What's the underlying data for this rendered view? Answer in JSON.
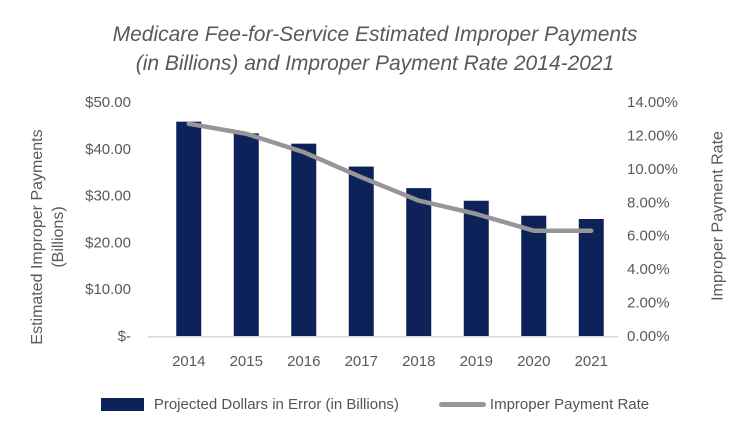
{
  "title": {
    "line1": "Medicare Fee-for-Service Estimated Improper Payments",
    "line2": "(in Billions) and Improper Payment Rate 2014-2021"
  },
  "axes": {
    "left": {
      "title_line1": "Estimated Improper Payments",
      "title_line2": "(Billions)"
    },
    "right": {
      "title": "Improper Payment Rate"
    }
  },
  "legend": {
    "bar_label": "Projected Dollars in Error (in Billions)",
    "line_label": "Improper Payment Rate"
  },
  "colors": {
    "bar": "#0c2258",
    "line": "#969696",
    "axis_line": "#d9d9d9",
    "text": "#595959"
  },
  "chart_data": {
    "type": "bar",
    "title": "Medicare Fee-for-Service Estimated Improper Payments (in Billions) and Improper Payment Rate 2014-2021",
    "categories": [
      "2014",
      "2015",
      "2016",
      "2017",
      "2018",
      "2019",
      "2020",
      "2021"
    ],
    "series": [
      {
        "name": "Projected Dollars in Error (in Billions)",
        "type": "bar",
        "axis": "left",
        "values": [
          45.8,
          43.3,
          41.1,
          36.2,
          31.6,
          28.9,
          25.7,
          25.0
        ]
      },
      {
        "name": "Improper Payment Rate",
        "type": "line",
        "axis": "right",
        "values": [
          12.7,
          12.1,
          11.0,
          9.5,
          8.1,
          7.3,
          6.3,
          6.3
        ]
      }
    ],
    "xlabel": "",
    "left_axis": {
      "label": "Estimated Improper Payments (Billions)",
      "min": 0,
      "max": 50,
      "tick_labels": [
        "$50.00",
        "$40.00",
        "$30.00",
        "$20.00",
        "$10.00",
        "$-"
      ],
      "tick_values": [
        50,
        40,
        30,
        20,
        10,
        0
      ]
    },
    "right_axis": {
      "label": "Improper Payment Rate",
      "min": 0,
      "max": 14,
      "tick_labels": [
        "14.00%",
        "12.00%",
        "10.00%",
        "8.00%",
        "6.00%",
        "4.00%",
        "2.00%",
        "0.00%"
      ],
      "tick_values": [
        14,
        12,
        10,
        8,
        6,
        4,
        2,
        0
      ]
    },
    "grid": false,
    "legend_position": "bottom"
  }
}
